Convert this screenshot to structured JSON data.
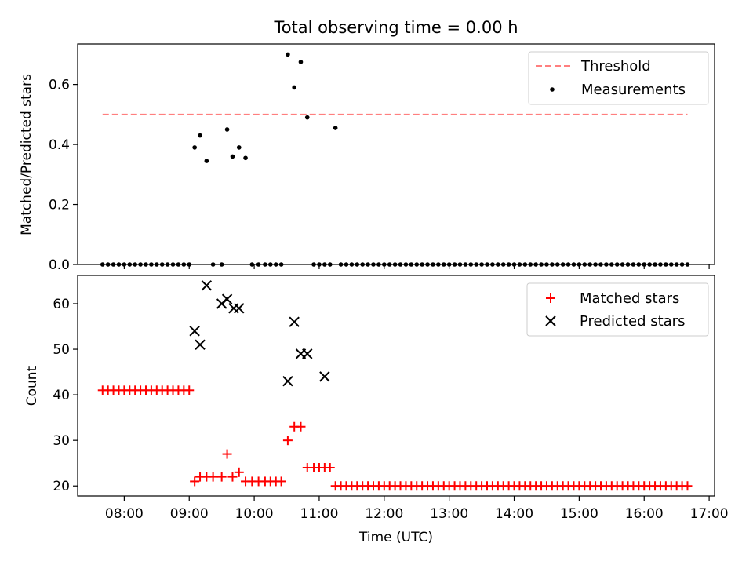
{
  "title": "Total observing time = 0.00 h",
  "colors": {
    "threshold": "#ff7f7f",
    "measurements": "#000000",
    "matched": "#ff0000",
    "predicted": "#000000"
  },
  "chart_data": [
    {
      "type": "scatter",
      "ylabel": "Matched/Predicted stars",
      "xlim": [
        "07:17",
        "17:05"
      ],
      "ylim": [
        0,
        0.735
      ],
      "y_ticks": [
        "0.0",
        "0.2",
        "0.4",
        "0.6"
      ],
      "legend": {
        "position": "top-right",
        "entries": [
          "Threshold",
          "Measurements"
        ]
      },
      "threshold": {
        "name": "Threshold",
        "y": 0.5,
        "x_range": [
          "07:40",
          "16:40"
        ]
      },
      "series": [
        {
          "name": "Measurements",
          "marker": "dot",
          "x": [
            "07:40",
            "07:45",
            "07:50",
            "07:55",
            "08:00",
            "08:05",
            "08:10",
            "08:15",
            "08:20",
            "08:25",
            "08:30",
            "08:35",
            "08:40",
            "08:45",
            "08:50",
            "08:55",
            "09:00",
            "09:05",
            "09:10",
            "09:16",
            "09:22",
            "09:30",
            "09:35",
            "09:40",
            "09:46",
            "09:52",
            "09:58",
            "10:04",
            "10:10",
            "10:15",
            "10:20",
            "10:25",
            "10:31",
            "10:37",
            "10:43",
            "10:49",
            "10:55",
            "11:00",
            "11:05",
            "11:10",
            "11:15",
            "11:20",
            "11:25",
            "11:30",
            "11:35",
            "11:40",
            "11:45",
            "11:50",
            "11:55",
            "12:00",
            "12:05",
            "12:10",
            "12:15",
            "12:20",
            "12:25",
            "12:30",
            "12:35",
            "12:40",
            "12:45",
            "12:50",
            "12:55",
            "13:00",
            "13:05",
            "13:10",
            "13:15",
            "13:20",
            "13:25",
            "13:30",
            "13:35",
            "13:40",
            "13:45",
            "13:50",
            "13:55",
            "14:00",
            "14:05",
            "14:10",
            "14:15",
            "14:20",
            "14:25",
            "14:30",
            "14:35",
            "14:40",
            "14:45",
            "14:50",
            "14:55",
            "15:00",
            "15:05",
            "15:10",
            "15:15",
            "15:20",
            "15:25",
            "15:30",
            "15:35",
            "15:40",
            "15:45",
            "15:50",
            "15:55",
            "16:00",
            "16:05",
            "16:10",
            "16:15",
            "16:20",
            "16:25",
            "16:30",
            "16:35",
            "16:40"
          ],
          "y": [
            0,
            0,
            0,
            0,
            0,
            0,
            0,
            0,
            0,
            0,
            0,
            0,
            0,
            0,
            0,
            0,
            0,
            0.39,
            0.43,
            0.345,
            0,
            0,
            0.45,
            0.36,
            0.39,
            0.355,
            0,
            0,
            0,
            0,
            0,
            0,
            0.7,
            0.59,
            0.675,
            0.49,
            0,
            0,
            0,
            0,
            0.455,
            0,
            0,
            0,
            0,
            0,
            0,
            0,
            0,
            0,
            0,
            0,
            0,
            0,
            0,
            0,
            0,
            0,
            0,
            0,
            0,
            0,
            0,
            0,
            0,
            0,
            0,
            0,
            0,
            0,
            0,
            0,
            0,
            0,
            0,
            0,
            0,
            0,
            0,
            0,
            0,
            0,
            0,
            0,
            0,
            0,
            0,
            0,
            0,
            0,
            0,
            0,
            0,
            0,
            0,
            0,
            0,
            0,
            0,
            0,
            0,
            0,
            0,
            0,
            0,
            0
          ]
        }
      ]
    },
    {
      "type": "scatter",
      "ylabel": "Count",
      "xlabel": "Time (UTC)",
      "xlim": [
        "07:17",
        "17:05"
      ],
      "ylim": [
        17.8,
        66.2
      ],
      "x_ticks": [
        "08:00",
        "09:00",
        "10:00",
        "11:00",
        "12:00",
        "13:00",
        "14:00",
        "15:00",
        "16:00",
        "17:00"
      ],
      "y_ticks": [
        "20",
        "30",
        "40",
        "50",
        "60"
      ],
      "legend": {
        "position": "top-right",
        "entries": [
          "Matched stars",
          "Predicted stars"
        ]
      },
      "series": [
        {
          "name": "Matched stars",
          "marker": "plus",
          "x": [
            "07:40",
            "07:45",
            "07:50",
            "07:55",
            "08:00",
            "08:05",
            "08:10",
            "08:15",
            "08:20",
            "08:25",
            "08:30",
            "08:35",
            "08:40",
            "08:45",
            "08:50",
            "08:55",
            "09:00",
            "09:05",
            "09:10",
            "09:16",
            "09:22",
            "09:30",
            "09:35",
            "09:40",
            "09:46",
            "09:52",
            "09:58",
            "10:04",
            "10:10",
            "10:15",
            "10:20",
            "10:25",
            "10:31",
            "10:37",
            "10:43",
            "10:49",
            "10:55",
            "11:00",
            "11:05",
            "11:10",
            "11:15",
            "11:20",
            "11:25",
            "11:30",
            "11:35",
            "11:40",
            "11:45",
            "11:50",
            "11:55",
            "12:00",
            "12:05",
            "12:10",
            "12:15",
            "12:20",
            "12:25",
            "12:30",
            "12:35",
            "12:40",
            "12:45",
            "12:50",
            "12:55",
            "13:00",
            "13:05",
            "13:10",
            "13:15",
            "13:20",
            "13:25",
            "13:30",
            "13:35",
            "13:40",
            "13:45",
            "13:50",
            "13:55",
            "14:00",
            "14:05",
            "14:10",
            "14:15",
            "14:20",
            "14:25",
            "14:30",
            "14:35",
            "14:40",
            "14:45",
            "14:50",
            "14:55",
            "15:00",
            "15:05",
            "15:10",
            "15:15",
            "15:20",
            "15:25",
            "15:30",
            "15:35",
            "15:40",
            "15:45",
            "15:50",
            "15:55",
            "16:00",
            "16:05",
            "16:10",
            "16:15",
            "16:20",
            "16:25",
            "16:30",
            "16:35",
            "16:40"
          ],
          "y": [
            41,
            41,
            41,
            41,
            41,
            41,
            41,
            41,
            41,
            41,
            41,
            41,
            41,
            41,
            41,
            41,
            41,
            21,
            22,
            22,
            22,
            22,
            27,
            22,
            23,
            21,
            21,
            21,
            21,
            21,
            21,
            21,
            30,
            33,
            33,
            24,
            24,
            24,
            24,
            24,
            20,
            20,
            20,
            20,
            20,
            20,
            20,
            20,
            20,
            20,
            20,
            20,
            20,
            20,
            20,
            20,
            20,
            20,
            20,
            20,
            20,
            20,
            20,
            20,
            20,
            20,
            20,
            20,
            20,
            20,
            20,
            20,
            20,
            20,
            20,
            20,
            20,
            20,
            20,
            20,
            20,
            20,
            20,
            20,
            20,
            20,
            20,
            20,
            20,
            20,
            20,
            20,
            20,
            20,
            20,
            20,
            20,
            20,
            20,
            20,
            20,
            20,
            20,
            20,
            20,
            20
          ]
        },
        {
          "name": "Predicted stars",
          "marker": "x",
          "x": [
            "09:05",
            "09:10",
            "09:16",
            "09:30",
            "09:35",
            "09:41",
            "09:46",
            "10:31",
            "10:37",
            "10:43",
            "10:49",
            "11:05"
          ],
          "y": [
            54,
            51,
            64,
            60,
            61,
            59,
            59,
            43,
            56,
            49,
            49,
            44
          ]
        }
      ]
    }
  ]
}
